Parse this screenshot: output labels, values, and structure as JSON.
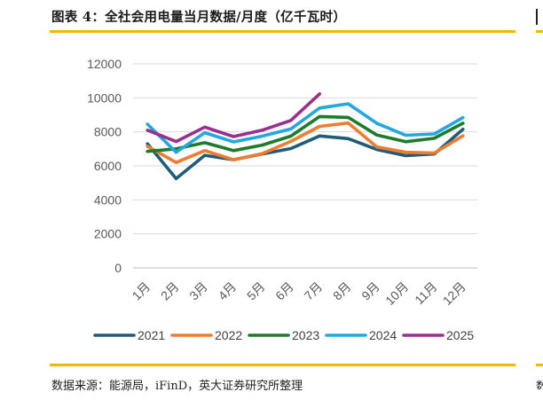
{
  "title": "图表 4：全社会用电量当月数据/月度（亿千瓦时）",
  "source": "数据来源：能源局，iFinD，英大证券研究所整理",
  "right_stub_text": "数",
  "chart_data": {
    "type": "line",
    "title": "全社会用电量当月数据/月度（亿千瓦时）",
    "xlabel": "",
    "ylabel": "",
    "ylim": [
      0,
      12000
    ],
    "yticks": [
      0,
      2000,
      4000,
      6000,
      8000,
      10000,
      12000
    ],
    "grid": true,
    "legend_position": "bottom",
    "categories": [
      "1月",
      "2月",
      "3月",
      "4月",
      "5月",
      "6月",
      "7月",
      "8月",
      "9月",
      "10月",
      "11月",
      "12月"
    ],
    "series": [
      {
        "name": "2021",
        "color": "#1f5c7a",
        "values": [
          7300,
          5250,
          6620,
          6360,
          6700,
          7020,
          7760,
          7600,
          6960,
          6600,
          6700,
          8150
        ]
      },
      {
        "name": "2022",
        "color": "#ed7d31",
        "values": [
          7150,
          6200,
          6900,
          6360,
          6720,
          7440,
          8320,
          8520,
          7110,
          6800,
          6750,
          7770
        ]
      },
      {
        "name": "2023",
        "color": "#1e7b2b",
        "values": [
          6850,
          7000,
          7360,
          6900,
          7220,
          7750,
          8900,
          8850,
          7810,
          7420,
          7620,
          8510
        ]
      },
      {
        "name": "2024",
        "color": "#22a7e0",
        "values": [
          8450,
          6800,
          7950,
          7410,
          7750,
          8170,
          9400,
          9650,
          8500,
          7800,
          7880,
          8840
        ]
      },
      {
        "name": "2025",
        "color": "#9b2f8f",
        "values": [
          8100,
          7430,
          8280,
          7720,
          8100,
          8670,
          10230,
          null,
          null,
          null,
          null,
          null
        ]
      }
    ]
  }
}
